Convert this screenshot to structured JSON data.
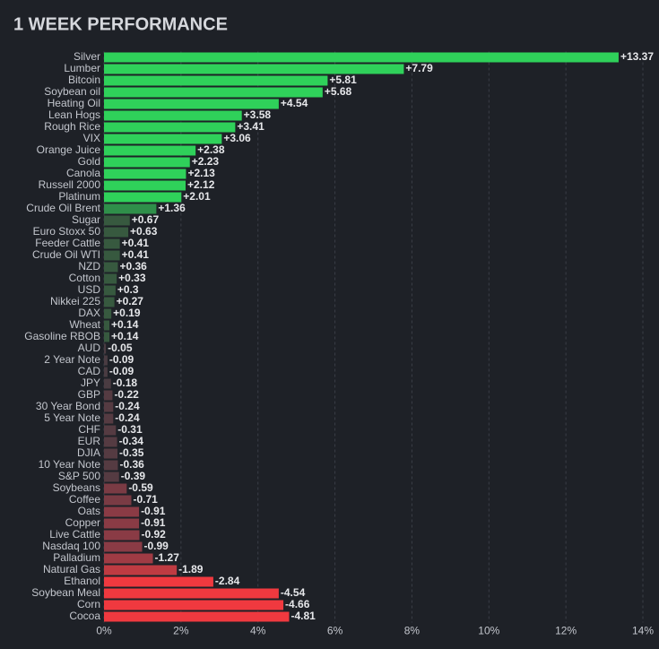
{
  "chart_data": {
    "type": "bar",
    "orientation": "horizontal",
    "title": "1 WEEK PERFORMANCE",
    "categories": [
      "Silver",
      "Lumber",
      "Bitcoin",
      "Soybean oil",
      "Heating Oil",
      "Lean Hogs",
      "Rough Rice",
      "VIX",
      "Orange Juice",
      "Gold",
      "Canola",
      "Russell 2000",
      "Platinum",
      "Crude Oil Brent",
      "Sugar",
      "Euro Stoxx 50",
      "Feeder Cattle",
      "Crude Oil WTI",
      "NZD",
      "Cotton",
      "USD",
      "Nikkei 225",
      "DAX",
      "Wheat",
      "Gasoline RBOB",
      "AUD",
      "2 Year Note",
      "CAD",
      "JPY",
      "GBP",
      "30 Year Bond",
      "5 Year Note",
      "CHF",
      "EUR",
      "DJIA",
      "10 Year Note",
      "S&P 500",
      "Soybeans",
      "Coffee",
      "Oats",
      "Copper",
      "Live Cattle",
      "Nasdaq 100",
      "Palladium",
      "Natural Gas",
      "Ethanol",
      "Soybean Meal",
      "Corn",
      "Cocoa"
    ],
    "values": [
      13.37,
      7.79,
      5.81,
      5.68,
      4.54,
      3.58,
      3.41,
      3.06,
      2.38,
      2.23,
      2.13,
      2.12,
      2.01,
      1.36,
      0.67,
      0.63,
      0.41,
      0.41,
      0.36,
      0.33,
      0.3,
      0.27,
      0.19,
      0.14,
      0.14,
      -0.05,
      -0.09,
      -0.09,
      -0.18,
      -0.22,
      -0.24,
      -0.24,
      -0.31,
      -0.34,
      -0.35,
      -0.36,
      -0.39,
      -0.59,
      -0.71,
      -0.91,
      -0.91,
      -0.92,
      -0.99,
      -1.27,
      -1.89,
      -2.84,
      -4.54,
      -4.66,
      -4.81
    ],
    "value_labels": [
      "+13.37",
      "+7.79",
      "+5.81",
      "+5.68",
      "+4.54",
      "+3.58",
      "+3.41",
      "+3.06",
      "+2.38",
      "+2.23",
      "+2.13",
      "+2.12",
      "+2.01",
      "+1.36",
      "+0.67",
      "+0.63",
      "+0.41",
      "+0.41",
      "+0.36",
      "+0.33",
      "+0.3",
      "+0.27",
      "+0.19",
      "+0.14",
      "+0.14",
      "-0.05",
      "-0.09",
      "-0.09",
      "-0.18",
      "-0.22",
      "-0.24",
      "-0.24",
      "-0.31",
      "-0.34",
      "-0.35",
      "-0.36",
      "-0.39",
      "-0.59",
      "-0.71",
      "-0.91",
      "-0.91",
      "-0.92",
      "-0.99",
      "-1.27",
      "-1.89",
      "-2.84",
      "-4.54",
      "-4.66",
      "-4.81"
    ],
    "colors": [
      "#2fd15a",
      "#2fd15a",
      "#2fd15a",
      "#2fd15a",
      "#2fd15a",
      "#2fd15a",
      "#2fd15a",
      "#2fd15a",
      "#2fd15a",
      "#2fd15a",
      "#2fd15a",
      "#2fd15a",
      "#2fd15a",
      "#2f8f4a",
      "#37593f",
      "#37593f",
      "#37593f",
      "#37593f",
      "#37593f",
      "#37593f",
      "#37593f",
      "#37593f",
      "#37593f",
      "#37593f",
      "#37593f",
      "#4a3c42",
      "#4a3c42",
      "#4a3c42",
      "#4a3c42",
      "#553b42",
      "#553b42",
      "#553b42",
      "#553b42",
      "#553b42",
      "#553b42",
      "#553b42",
      "#553b42",
      "#7a3b44",
      "#7a3b44",
      "#8a3b45",
      "#8a3b45",
      "#8a3b45",
      "#8a3b45",
      "#a03b44",
      "#bf3b42",
      "#f0393f",
      "#f0393f",
      "#f0393f",
      "#f0393f"
    ],
    "xlim": [
      0,
      14
    ],
    "xticks": [
      {
        "value": 0,
        "label": "0%"
      },
      {
        "value": 2,
        "label": "2%"
      },
      {
        "value": 4,
        "label": "4%"
      },
      {
        "value": 6,
        "label": "6%"
      },
      {
        "value": 8,
        "label": "8%"
      },
      {
        "value": 10,
        "label": "10%"
      },
      {
        "value": 12,
        "label": "12%"
      },
      {
        "value": 14,
        "label": "14%"
      }
    ],
    "grid": true
  }
}
